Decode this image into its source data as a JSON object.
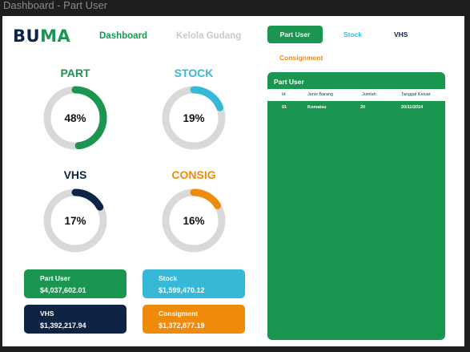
{
  "window": {
    "title": "Dashboard - Part User"
  },
  "brand": {
    "logo_part1": "BU",
    "logo_part2": "MA",
    "colors": {
      "green": "#1a9650",
      "cyan": "#35b9d6",
      "navy": "#0d2445",
      "orange": "#ef8a0b"
    }
  },
  "nav": {
    "dashboard": "Dashboard",
    "kelola": "Kelola Gudang"
  },
  "tabs": {
    "active": "Part User",
    "stock": "Stock",
    "vhs": "VHS",
    "consig": "Consignment"
  },
  "rings": [
    {
      "title": "PART",
      "percent": 48,
      "label": "48%",
      "color": "#1a9650"
    },
    {
      "title": "STOCK",
      "percent": 19,
      "label": "19%",
      "color": "#35b9d6"
    },
    {
      "title": "VHS",
      "percent": 17,
      "label": "17%",
      "color": "#0d2445"
    },
    {
      "title": "CONSIG",
      "percent": 16,
      "label": "16%",
      "color": "#ef8a0b"
    }
  ],
  "cards": [
    {
      "label": "Part User",
      "value": "$4,037,602.01",
      "color": "#1a9650"
    },
    {
      "label": "Stock",
      "value": "$1,599,470.12",
      "color": "#35b9d6"
    },
    {
      "label": "VHS",
      "value": "$1,392,217.94",
      "color": "#0d2445"
    },
    {
      "label": "Consigment",
      "value": "$1,372,877.19",
      "color": "#ef8a0b"
    }
  ],
  "panel": {
    "title": "Part User",
    "columns": [
      "Id",
      "Jenis Barang",
      "Jumlah",
      "Tanggal Keluar"
    ],
    "rows": [
      [
        "01",
        "Komatsu",
        "20",
        "20/11/2024"
      ]
    ]
  }
}
